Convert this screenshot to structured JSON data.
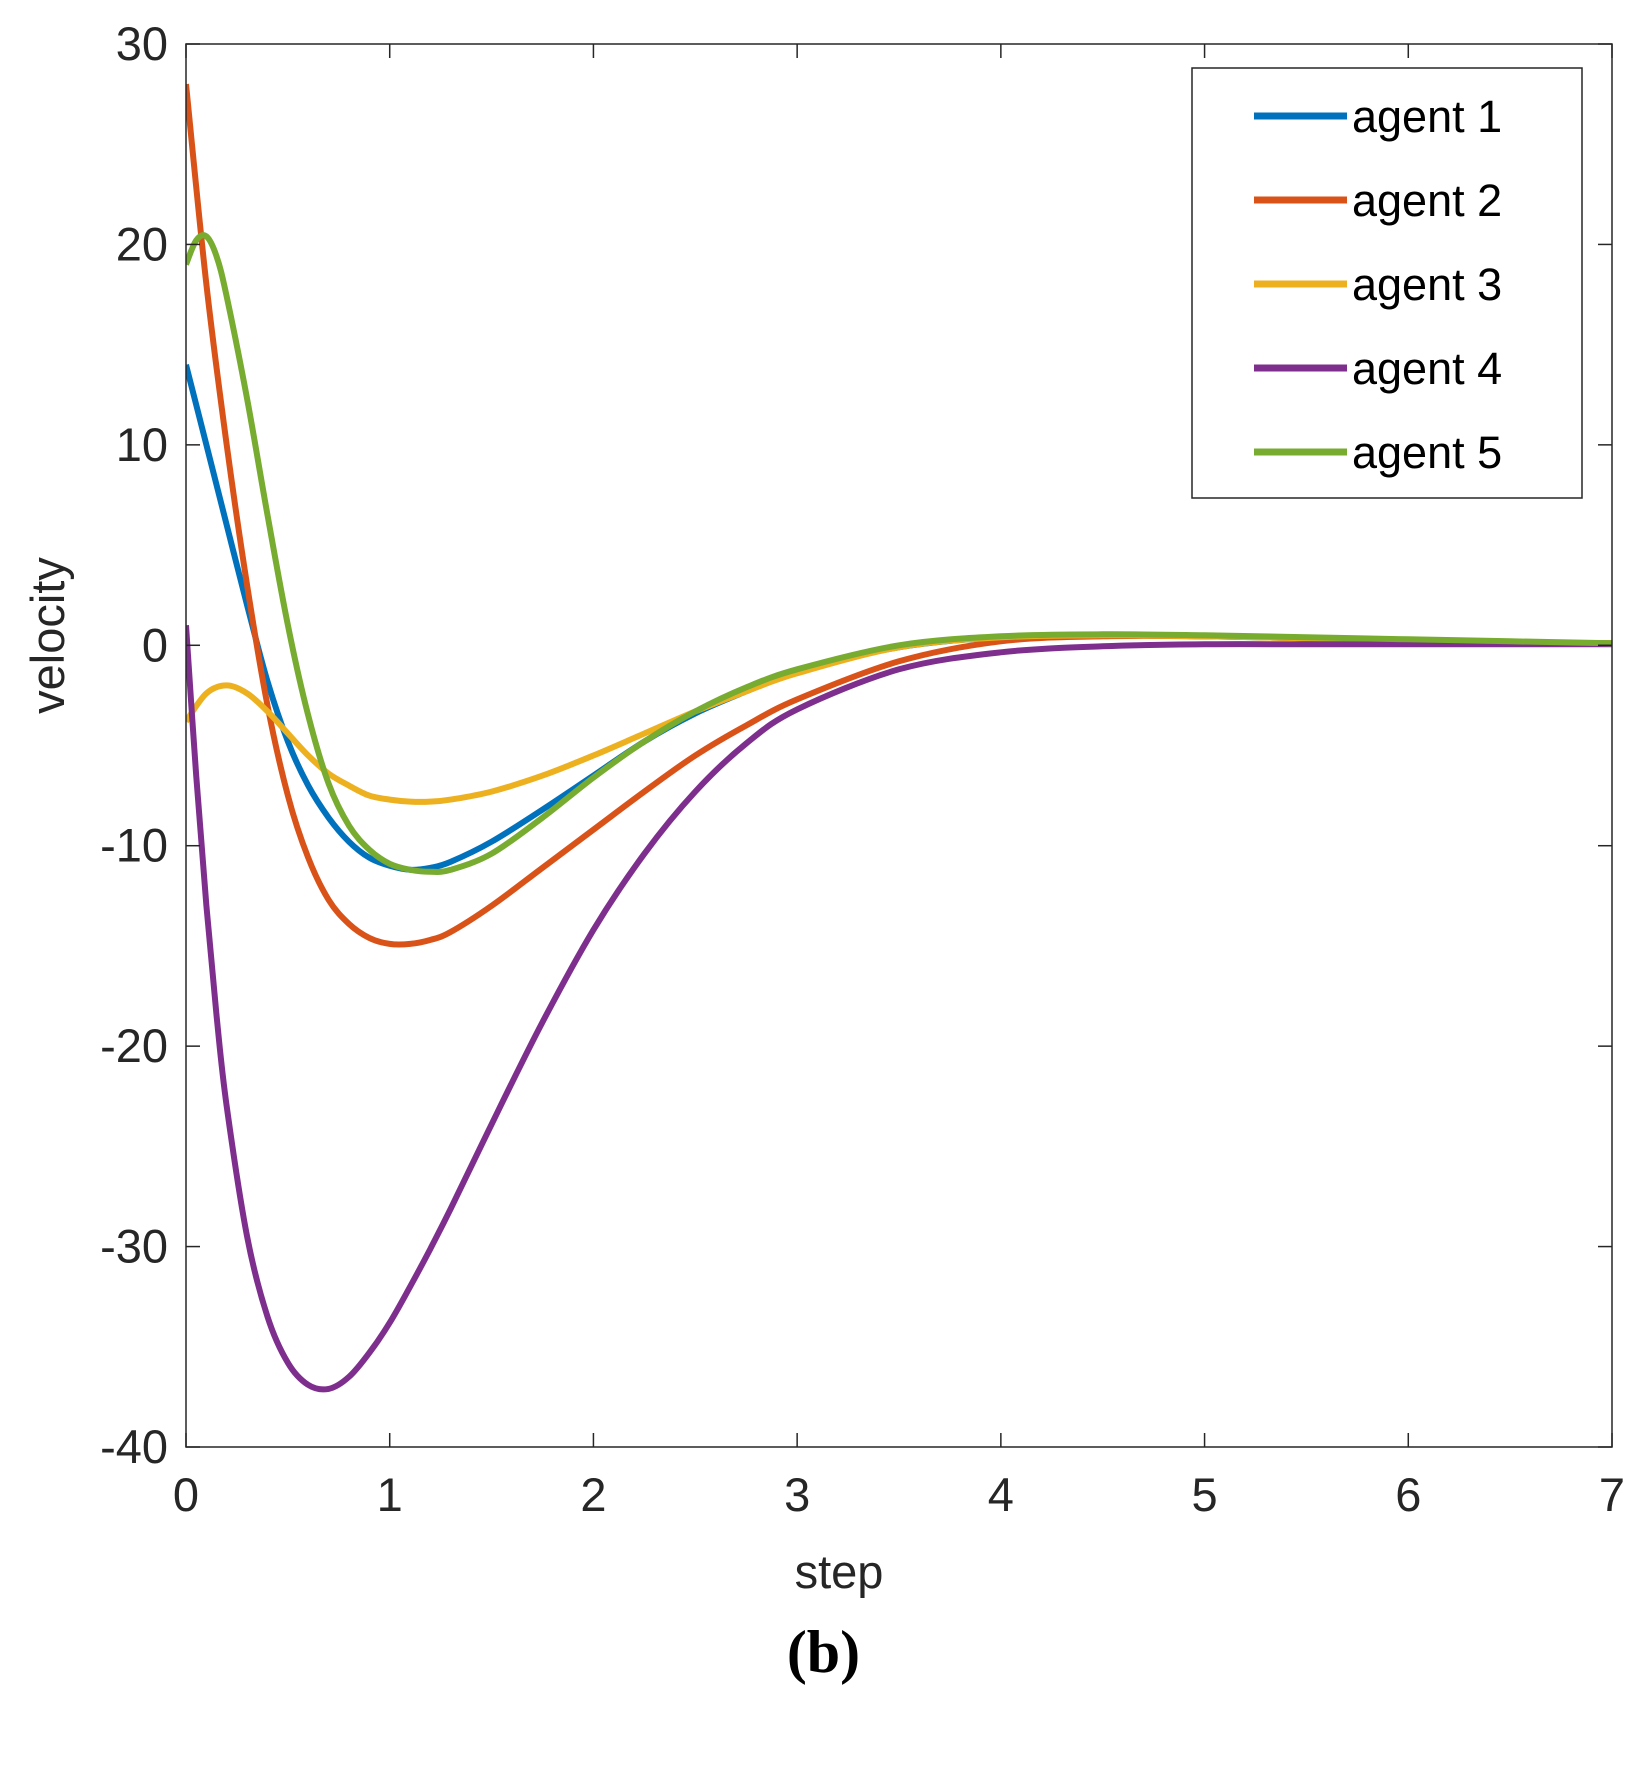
{
  "chart_data": {
    "type": "line",
    "title": "",
    "xlabel": "step",
    "ylabel": "velocity",
    "xlim": [
      0,
      7
    ],
    "ylim": [
      -40,
      30
    ],
    "xticks": [
      0,
      1,
      2,
      3,
      4,
      5,
      6,
      7
    ],
    "yticks": [
      -40,
      -30,
      -20,
      -10,
      0,
      10,
      20,
      30
    ],
    "grid": false,
    "legend_position": "top-right",
    "series": [
      {
        "name": "agent 1",
        "color": "#0072BD",
        "x": [
          0,
          0.1,
          0.2,
          0.3,
          0.4,
          0.5,
          0.6,
          0.7,
          0.8,
          0.9,
          1.0,
          1.1,
          1.2,
          1.3,
          1.5,
          1.75,
          2.0,
          2.25,
          2.5,
          2.75,
          3.0,
          3.5,
          4.0,
          4.5,
          5.0,
          5.5,
          6.0,
          6.5,
          7.0
        ],
        "y": [
          14,
          10,
          6,
          2,
          -1.8,
          -4.8,
          -7.0,
          -8.6,
          -9.8,
          -10.6,
          -11.0,
          -11.2,
          -11.1,
          -10.8,
          -9.8,
          -8.2,
          -6.5,
          -4.8,
          -3.4,
          -2.3,
          -1.3,
          -0.1,
          0.4,
          0.5,
          0.45,
          0.35,
          0.25,
          0.15,
          0.1
        ]
      },
      {
        "name": "agent 2",
        "color": "#D95319",
        "x": [
          0,
          0.1,
          0.2,
          0.3,
          0.4,
          0.5,
          0.6,
          0.7,
          0.8,
          0.9,
          1.0,
          1.1,
          1.2,
          1.3,
          1.5,
          1.75,
          2.0,
          2.25,
          2.5,
          2.75,
          3.0,
          3.5,
          4.0,
          4.5,
          5.0,
          5.5,
          6.0,
          6.5,
          7.0
        ],
        "y": [
          28,
          18,
          10,
          3,
          -3,
          -7.5,
          -10.6,
          -12.7,
          -13.9,
          -14.6,
          -14.9,
          -14.9,
          -14.7,
          -14.3,
          -13.0,
          -11.1,
          -9.2,
          -7.3,
          -5.5,
          -4.0,
          -2.7,
          -0.8,
          0.2,
          0.45,
          0.45,
          0.35,
          0.25,
          0.15,
          0.1
        ]
      },
      {
        "name": "agent 3",
        "color": "#EDB120",
        "x": [
          0,
          0.1,
          0.2,
          0.3,
          0.4,
          0.5,
          0.6,
          0.7,
          0.8,
          0.9,
          1.0,
          1.1,
          1.2,
          1.3,
          1.5,
          1.75,
          2.0,
          2.25,
          2.5,
          2.75,
          3.0,
          3.5,
          4.0,
          4.5,
          5.0,
          5.5,
          6.0,
          6.5,
          7.0
        ],
        "y": [
          -3.8,
          -2.4,
          -2.0,
          -2.4,
          -3.3,
          -4.4,
          -5.5,
          -6.4,
          -7.0,
          -7.5,
          -7.7,
          -7.8,
          -7.8,
          -7.7,
          -7.3,
          -6.5,
          -5.5,
          -4.4,
          -3.3,
          -2.3,
          -1.4,
          -0.1,
          0.4,
          0.5,
          0.45,
          0.35,
          0.25,
          0.15,
          0.1
        ]
      },
      {
        "name": "agent 4",
        "color": "#7E2F8E",
        "x": [
          0,
          0.05,
          0.1,
          0.15,
          0.2,
          0.3,
          0.4,
          0.5,
          0.6,
          0.7,
          0.8,
          0.9,
          1.0,
          1.1,
          1.2,
          1.3,
          1.5,
          1.75,
          2.0,
          2.25,
          2.5,
          2.75,
          3.0,
          3.5,
          4.0,
          4.5,
          5.0,
          5.5,
          6.0,
          6.5,
          7.0
        ],
        "y": [
          1,
          -6.5,
          -13,
          -18.5,
          -23,
          -29.5,
          -33.5,
          -35.8,
          -36.9,
          -37.1,
          -36.5,
          -35.3,
          -33.8,
          -32.0,
          -30.1,
          -28.1,
          -23.9,
          -18.8,
          -14.2,
          -10.4,
          -7.3,
          -4.9,
          -3.2,
          -1.2,
          -0.35,
          -0.05,
          0.05,
          0.05,
          0.05,
          0.05,
          0.05
        ]
      },
      {
        "name": "agent 5",
        "color": "#77AC30",
        "x": [
          0,
          0.05,
          0.1,
          0.15,
          0.2,
          0.3,
          0.4,
          0.5,
          0.6,
          0.7,
          0.8,
          0.9,
          1.0,
          1.1,
          1.2,
          1.3,
          1.5,
          1.75,
          2.0,
          2.25,
          2.5,
          2.75,
          3.0,
          3.5,
          4.0,
          4.5,
          5.0,
          5.5,
          6.0,
          6.5,
          7.0
        ],
        "y": [
          19,
          20.2,
          20.4,
          19.4,
          17.4,
          12.3,
          6.5,
          1.0,
          -3.5,
          -6.9,
          -9.0,
          -10.2,
          -10.9,
          -11.2,
          -11.3,
          -11.2,
          -10.4,
          -8.6,
          -6.6,
          -4.8,
          -3.3,
          -2.1,
          -1.2,
          0.0,
          0.45,
          0.55,
          0.5,
          0.4,
          0.3,
          0.2,
          0.1
        ]
      }
    ]
  },
  "caption": "(b)"
}
